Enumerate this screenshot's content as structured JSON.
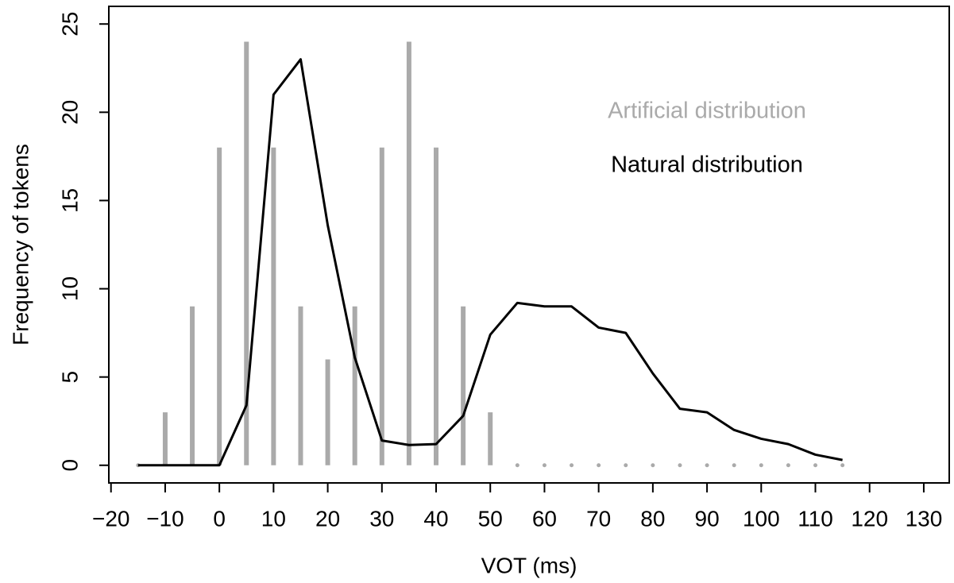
{
  "chart_data": {
    "type": "line",
    "x_label": "VOT (ms)",
    "y_label": "Frequency of tokens",
    "x": [
      -15,
      -10,
      -5,
      0,
      5,
      10,
      15,
      20,
      25,
      30,
      35,
      40,
      45,
      50,
      55,
      60,
      65,
      70,
      75,
      80,
      85,
      90,
      95,
      100,
      105,
      110,
      115
    ],
    "series": [
      {
        "name": "Artificial distribution",
        "type": "spike",
        "color": "#aaaaaa",
        "values": [
          0,
          3,
          9,
          18,
          24,
          18,
          9,
          6,
          9,
          18,
          24,
          18,
          9,
          3,
          0,
          0,
          0,
          0,
          0,
          0,
          0,
          0,
          0,
          0,
          0,
          0,
          0
        ]
      },
      {
        "name": "Natural distribution",
        "type": "line",
        "color": "#000000",
        "values": [
          0,
          0,
          0,
          0,
          3.4,
          21,
          23,
          13.6,
          6.1,
          1.4,
          1.15,
          1.2,
          2.8,
          7.4,
          9.2,
          9.0,
          9.0,
          7.8,
          7.5,
          5.2,
          3.2,
          3.0,
          2.0,
          1.5,
          1.2,
          0.6,
          0.3
        ]
      }
    ],
    "xlim": [
      -20.4,
      134.7
    ],
    "ylim": [
      -1,
      26
    ],
    "xticks": [
      {
        "value": -20,
        "label": "−20"
      },
      {
        "value": -10,
        "label": "−10"
      },
      0,
      10,
      20,
      30,
      40,
      50,
      60,
      70,
      80,
      90,
      100,
      110,
      120,
      130
    ],
    "yticks": [
      0,
      5,
      10,
      15,
      20,
      25
    ],
    "grid": false
  }
}
